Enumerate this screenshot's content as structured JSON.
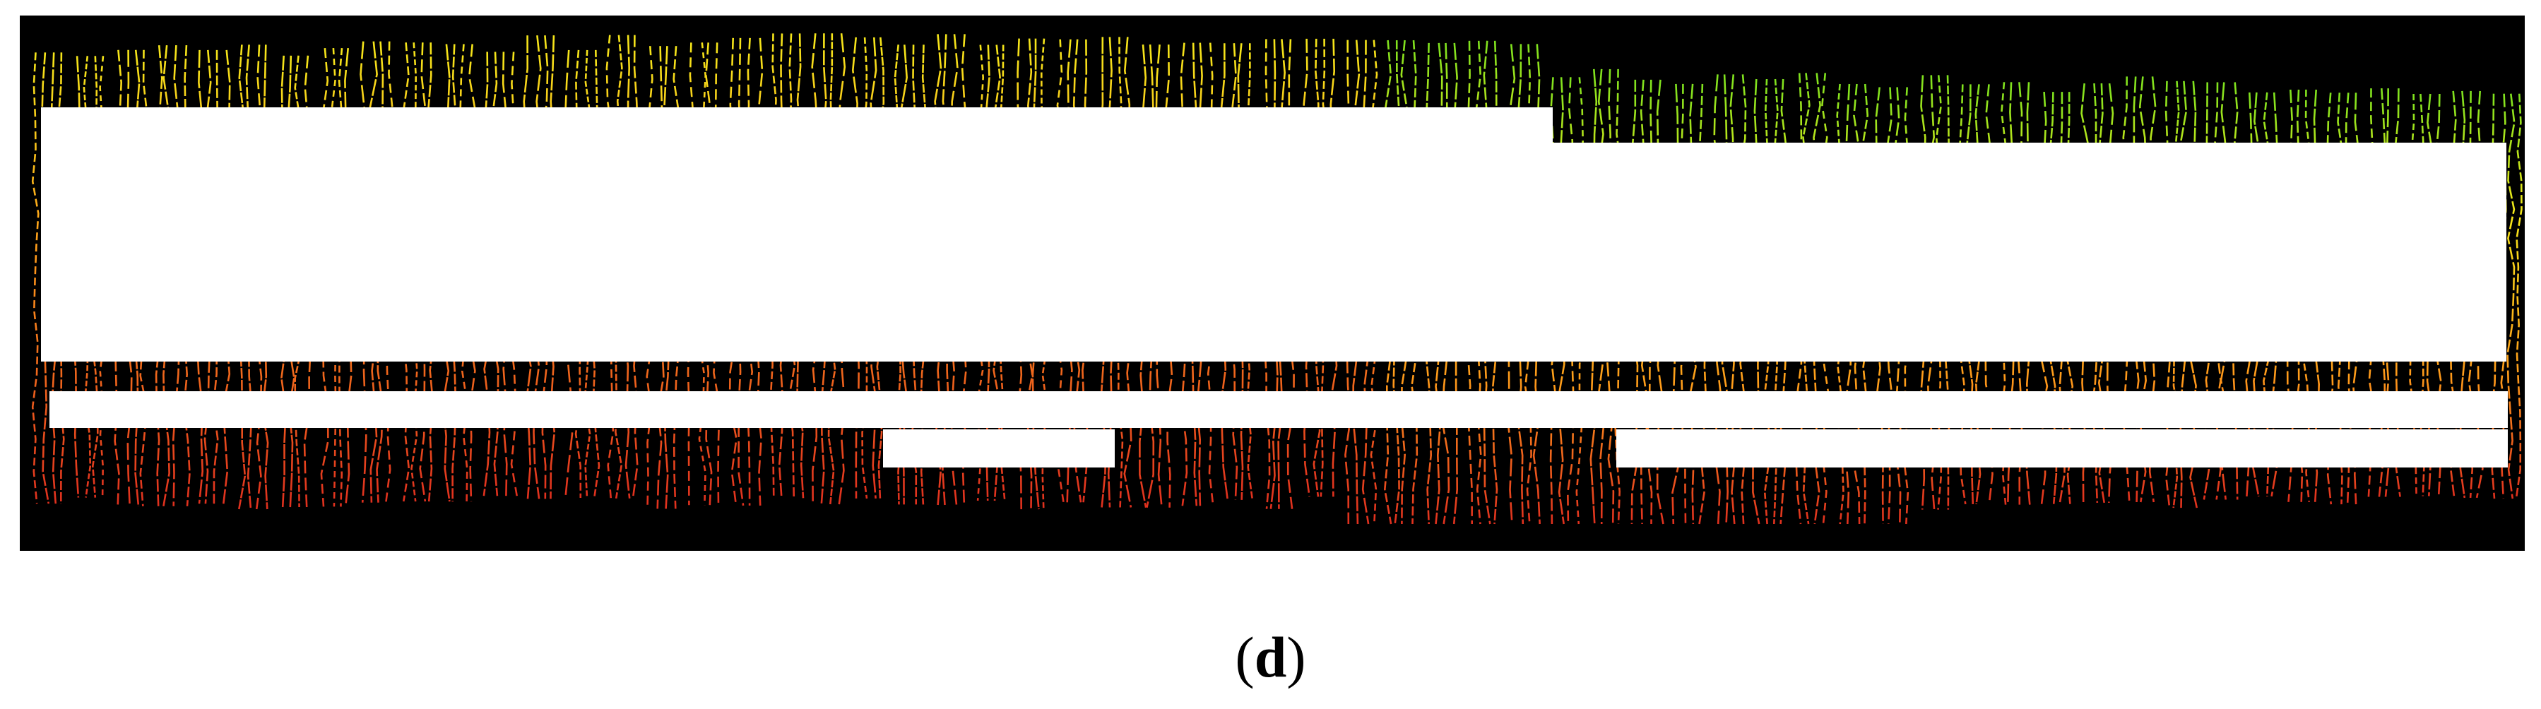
{
  "figure": {
    "label_open": "(",
    "label_letter": "d",
    "label_close": ")"
  },
  "colors": {
    "background": "#000000",
    "occlusion": "#ffffff",
    "height_low": "#e0301e",
    "height_mid": "#ff9a1a",
    "height_high": "#f5e61a",
    "height_top": "#7ee21e"
  },
  "image": {
    "type": "point-cloud-height-map",
    "row_count": 61
  }
}
